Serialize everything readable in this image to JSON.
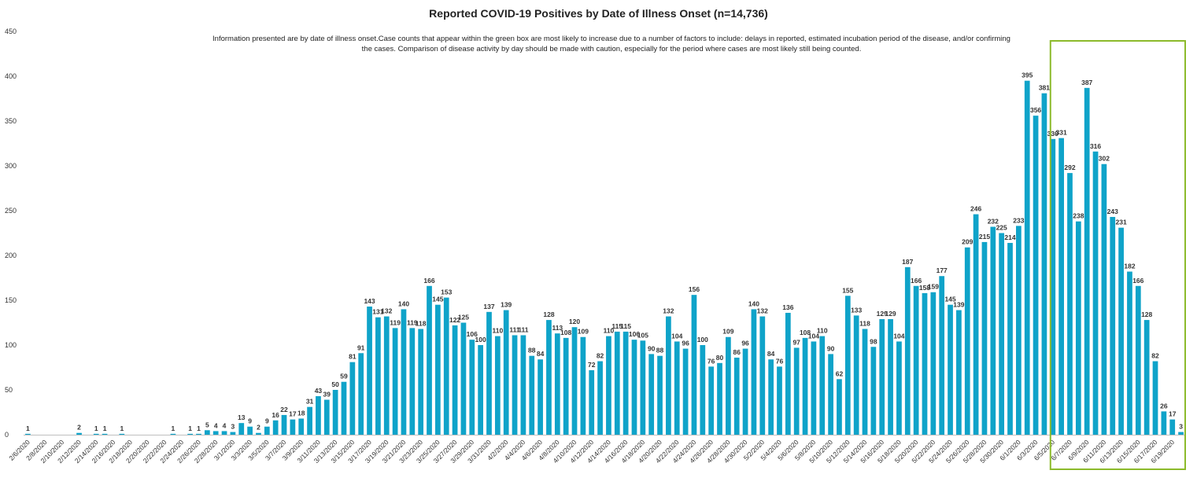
{
  "chart_data": {
    "type": "bar",
    "title": "Reported COVID-19 Positives by Date of Illness Onset (n=14,736)",
    "annotation": "Information presented are by date of illness onset.Case counts that appear within the green box are most likely to increase due to a number of factors to include: delays in reported, estimated incubation period of the disease, and/or confirming the cases. Comparison of disease activity by day should be made with caution, especially for the period where cases are most likely still being counted.",
    "xlabel": "",
    "ylabel": "",
    "ylim": [
      0,
      450
    ],
    "yticks": [
      0,
      50,
      100,
      150,
      200,
      250,
      300,
      350,
      400,
      450
    ],
    "grid": false,
    "legend": "none",
    "bar_color": "#0fa3c9",
    "highlight_box_color": "#8cba2b",
    "highlight_range": [
      "6/5/2020",
      "6/20/2020"
    ],
    "x": [
      "2/6/2020",
      "2/7/2020",
      "2/8/2020",
      "2/9/2020",
      "2/10/2020",
      "2/11/2020",
      "2/12/2020",
      "2/13/2020",
      "2/14/2020",
      "2/15/2020",
      "2/16/2020",
      "2/17/2020",
      "2/18/2020",
      "2/19/2020",
      "2/20/2020",
      "2/21/2020",
      "2/22/2020",
      "2/23/2020",
      "2/24/2020",
      "2/25/2020",
      "2/26/2020",
      "2/27/2020",
      "2/28/2020",
      "2/29/2020",
      "3/1/2020",
      "3/2/2020",
      "3/3/2020",
      "3/4/2020",
      "3/5/2020",
      "3/6/2020",
      "3/7/2020",
      "3/8/2020",
      "3/9/2020",
      "3/10/2020",
      "3/11/2020",
      "3/12/2020",
      "3/13/2020",
      "3/14/2020",
      "3/15/2020",
      "3/16/2020",
      "3/17/2020",
      "3/18/2020",
      "3/19/2020",
      "3/20/2020",
      "3/21/2020",
      "3/22/2020",
      "3/23/2020",
      "3/24/2020",
      "3/25/2020",
      "3/26/2020",
      "3/27/2020",
      "3/28/2020",
      "3/29/2020",
      "3/30/2020",
      "3/31/2020",
      "4/1/2020",
      "4/2/2020",
      "4/3/2020",
      "4/4/2020",
      "4/5/2020",
      "4/6/2020",
      "4/7/2020",
      "4/8/2020",
      "4/9/2020",
      "4/10/2020",
      "4/11/2020",
      "4/12/2020",
      "4/13/2020",
      "4/14/2020",
      "4/15/2020",
      "4/16/2020",
      "4/17/2020",
      "4/18/2020",
      "4/19/2020",
      "4/20/2020",
      "4/21/2020",
      "4/22/2020",
      "4/23/2020",
      "4/24/2020",
      "4/25/2020",
      "4/26/2020",
      "4/27/2020",
      "4/28/2020",
      "4/29/2020",
      "4/30/2020",
      "5/1/2020",
      "5/2/2020",
      "5/3/2020",
      "5/4/2020",
      "5/5/2020",
      "5/6/2020",
      "5/7/2020",
      "5/8/2020",
      "5/9/2020",
      "5/10/2020",
      "5/11/2020",
      "5/12/2020",
      "5/13/2020",
      "5/14/2020",
      "5/15/2020",
      "5/16/2020",
      "5/17/2020",
      "5/18/2020",
      "5/19/2020",
      "5/20/2020",
      "5/21/2020",
      "5/22/2020",
      "5/23/2020",
      "5/24/2020",
      "5/25/2020",
      "5/26/2020",
      "5/27/2020",
      "5/28/2020",
      "5/29/2020",
      "5/30/2020",
      "5/31/2020",
      "6/1/2020",
      "6/2/2020",
      "6/3/2020",
      "6/4/2020",
      "6/5/2020",
      "6/6/2020",
      "6/7/2020",
      "6/8/2020",
      "6/9/2020",
      "6/10/2020",
      "6/11/2020",
      "6/12/2020",
      "6/13/2020",
      "6/14/2020",
      "6/15/2020",
      "6/16/2020",
      "6/17/2020",
      "6/18/2020",
      "6/19/2020",
      "6/20/2020"
    ],
    "values": [
      1,
      0,
      0,
      0,
      0,
      0,
      2,
      0,
      1,
      1,
      0,
      1,
      0,
      0,
      0,
      0,
      0,
      1,
      0,
      1,
      1,
      5,
      4,
      4,
      3,
      13,
      9,
      2,
      9,
      16,
      22,
      17,
      18,
      31,
      43,
      39,
      50,
      59,
      81,
      91,
      143,
      131,
      132,
      119,
      140,
      119,
      118,
      166,
      145,
      153,
      122,
      125,
      106,
      100,
      137,
      110,
      139,
      111,
      111,
      88,
      84,
      128,
      113,
      108,
      120,
      109,
      72,
      82,
      110,
      115,
      115,
      106,
      105,
      90,
      88,
      132,
      104,
      96,
      156,
      100,
      76,
      80,
      109,
      86,
      96,
      140,
      132,
      84,
      76,
      136,
      97,
      108,
      104,
      110,
      90,
      62,
      155,
      133,
      118,
      98,
      129,
      129,
      104,
      187,
      166,
      158,
      159,
      177,
      145,
      139,
      209,
      246,
      215,
      232,
      225,
      214,
      233,
      395,
      356,
      381,
      330,
      331,
      292,
      238,
      387,
      316,
      302,
      243,
      231,
      182,
      166,
      128,
      82,
      26,
      17,
      3
    ],
    "tick_labels": [
      "2/6/2020",
      "2/8/2020",
      "2/10/2020",
      "2/12/2020",
      "2/14/2020",
      "2/16/2020",
      "2/18/2020",
      "2/20/2020",
      "2/22/2020",
      "2/24/2020",
      "2/26/2020",
      "2/28/2020",
      "3/1/2020",
      "3/3/2020",
      "3/5/2020",
      "3/7/2020",
      "3/9/2020",
      "3/11/2020",
      "3/13/2020",
      "3/15/2020",
      "3/17/2020",
      "3/19/2020",
      "3/21/2020",
      "3/23/2020",
      "3/25/2020",
      "3/27/2020",
      "3/29/2020",
      "3/31/2020",
      "4/2/2020",
      "4/4/2020",
      "4/6/2020",
      "4/8/2020",
      "4/10/2020",
      "4/12/2020",
      "4/14/2020",
      "4/16/2020",
      "4/18/2020",
      "4/20/2020",
      "4/22/2020",
      "4/24/2020",
      "4/26/2020",
      "4/28/2020",
      "4/30/2020",
      "5/2/2020",
      "5/4/2020",
      "5/6/2020",
      "5/8/2020",
      "5/10/2020",
      "5/12/2020",
      "5/14/2020",
      "5/16/2020",
      "5/18/2020",
      "5/20/2020",
      "5/22/2020",
      "5/24/2020",
      "5/26/2020",
      "5/28/2020",
      "5/30/2020",
      "6/1/2020",
      "6/3/2020",
      "6/5/2020",
      "6/7/2020",
      "6/9/2020",
      "6/11/2020",
      "6/13/2020",
      "6/15/2020",
      "6/17/2020",
      "6/19/2020"
    ]
  }
}
